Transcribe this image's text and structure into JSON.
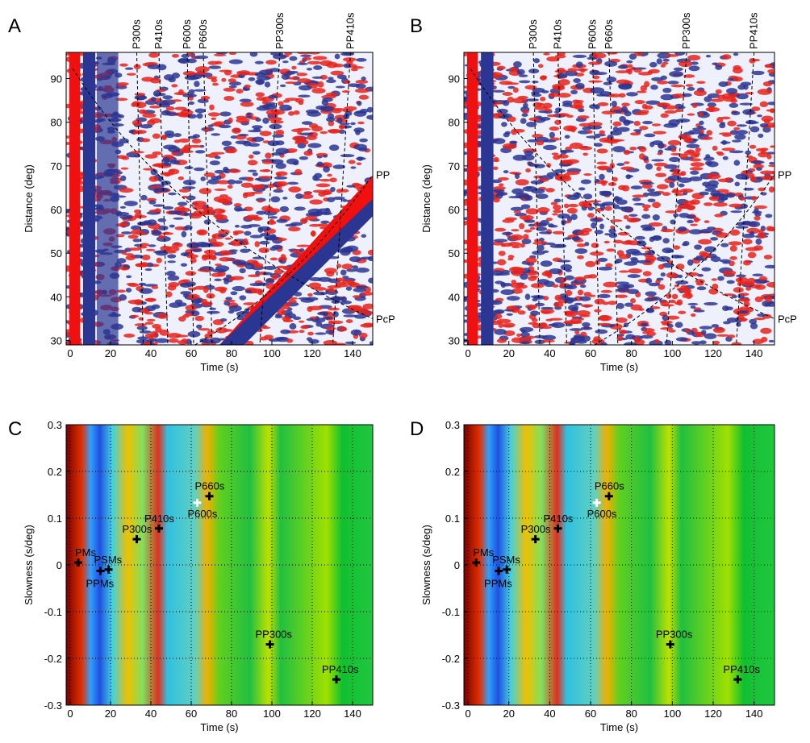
{
  "chart_data": [
    {
      "type": "seismic-section",
      "panel": "A",
      "xlabel": "Time (s)",
      "ylabel": "Distance (deg)",
      "xlim": [
        -2,
        150
      ],
      "xticks": [
        0,
        20,
        40,
        60,
        80,
        100,
        120,
        140
      ],
      "ylim": [
        29,
        96
      ],
      "yticks": [
        30,
        40,
        50,
        60,
        70,
        80,
        90
      ],
      "phases": [
        {
          "name": "P300s",
          "time": 33
        },
        {
          "name": "P410s",
          "time": 44
        },
        {
          "name": "P600s",
          "time": 58
        },
        {
          "name": "P660s",
          "time": 66
        },
        {
          "name": "PP300s",
          "time": 104
        },
        {
          "name": "PP410s",
          "time": 139
        }
      ],
      "side_labels": [
        {
          "text": "PP",
          "y": 68
        },
        {
          "text": "PcP",
          "y": 35
        }
      ]
    },
    {
      "type": "seismic-section",
      "panel": "B",
      "xlabel": "Time (s)",
      "ylabel": "Distance (deg)",
      "xlim": [
        -2,
        150
      ],
      "xticks": [
        0,
        20,
        40,
        60,
        80,
        100,
        120,
        140
      ],
      "ylim": [
        29,
        96
      ],
      "yticks": [
        30,
        40,
        50,
        60,
        70,
        80,
        90
      ],
      "phases": [
        {
          "name": "P300s",
          "time": 32
        },
        {
          "name": "P410s",
          "time": 44
        },
        {
          "name": "P600s",
          "time": 61
        },
        {
          "name": "P660s",
          "time": 69
        },
        {
          "name": "PP300s",
          "time": 107
        },
        {
          "name": "PP410s",
          "time": 140
        }
      ],
      "side_labels": [
        {
          "text": "PP",
          "y": 68
        },
        {
          "text": "PcP",
          "y": 35
        }
      ]
    },
    {
      "type": "vespagram",
      "panel": "C",
      "xlabel": "Time (s)",
      "ylabel": "Slowness (s/deg)",
      "xlim": [
        -2,
        150
      ],
      "xticks": [
        0,
        20,
        40,
        60,
        80,
        100,
        120,
        140
      ],
      "ylim": [
        -0.3,
        0.3
      ],
      "yticks": [
        -0.3,
        -0.2,
        -0.1,
        0,
        0.1,
        0.2,
        0.3
      ],
      "grid": true,
      "points": [
        {
          "name": "PMs",
          "x": 4,
          "y": 0.005,
          "color": "#000000"
        },
        {
          "name": "PPMs",
          "x": 15,
          "y": -0.013,
          "color": "#000000"
        },
        {
          "name": "PSMs",
          "x": 19,
          "y": -0.01,
          "color": "#000000"
        },
        {
          "name": "P300s",
          "x": 33,
          "y": 0.055,
          "color": "#000000"
        },
        {
          "name": "P410s",
          "x": 44,
          "y": 0.078,
          "color": "#000000"
        },
        {
          "name": "P600s",
          "x": 63,
          "y": 0.133,
          "color": "#ffffff"
        },
        {
          "name": "P660s",
          "x": 69,
          "y": 0.147,
          "color": "#000000"
        },
        {
          "name": "PP300s",
          "x": 99,
          "y": -0.17,
          "color": "#000000"
        },
        {
          "name": "PP410s",
          "x": 132,
          "y": -0.245,
          "color": "#000000"
        }
      ]
    },
    {
      "type": "vespagram",
      "panel": "D",
      "xlabel": "Time (s)",
      "ylabel": "Slowness (s/deg)",
      "xlim": [
        -2,
        150
      ],
      "xticks": [
        0,
        20,
        40,
        60,
        80,
        100,
        120,
        140
      ],
      "ylim": [
        -0.3,
        0.3
      ],
      "yticks": [
        -0.3,
        -0.2,
        -0.1,
        0,
        0.1,
        0.2,
        0.3
      ],
      "grid": true,
      "points": [
        {
          "name": "PMs",
          "x": 4,
          "y": 0.005,
          "color": "#000000"
        },
        {
          "name": "PPMs",
          "x": 15,
          "y": -0.013,
          "color": "#000000"
        },
        {
          "name": "PSMs",
          "x": 19,
          "y": -0.01,
          "color": "#000000"
        },
        {
          "name": "P300s",
          "x": 33,
          "y": 0.055,
          "color": "#000000"
        },
        {
          "name": "P410s",
          "x": 44,
          "y": 0.078,
          "color": "#000000"
        },
        {
          "name": "P600s",
          "x": 63,
          "y": 0.133,
          "color": "#ffffff"
        },
        {
          "name": "P660s",
          "x": 69,
          "y": 0.147,
          "color": "#000000"
        },
        {
          "name": "PP300s",
          "x": 99,
          "y": -0.17,
          "color": "#000000"
        },
        {
          "name": "PP410s",
          "x": 132,
          "y": -0.245,
          "color": "#000000"
        }
      ]
    }
  ]
}
